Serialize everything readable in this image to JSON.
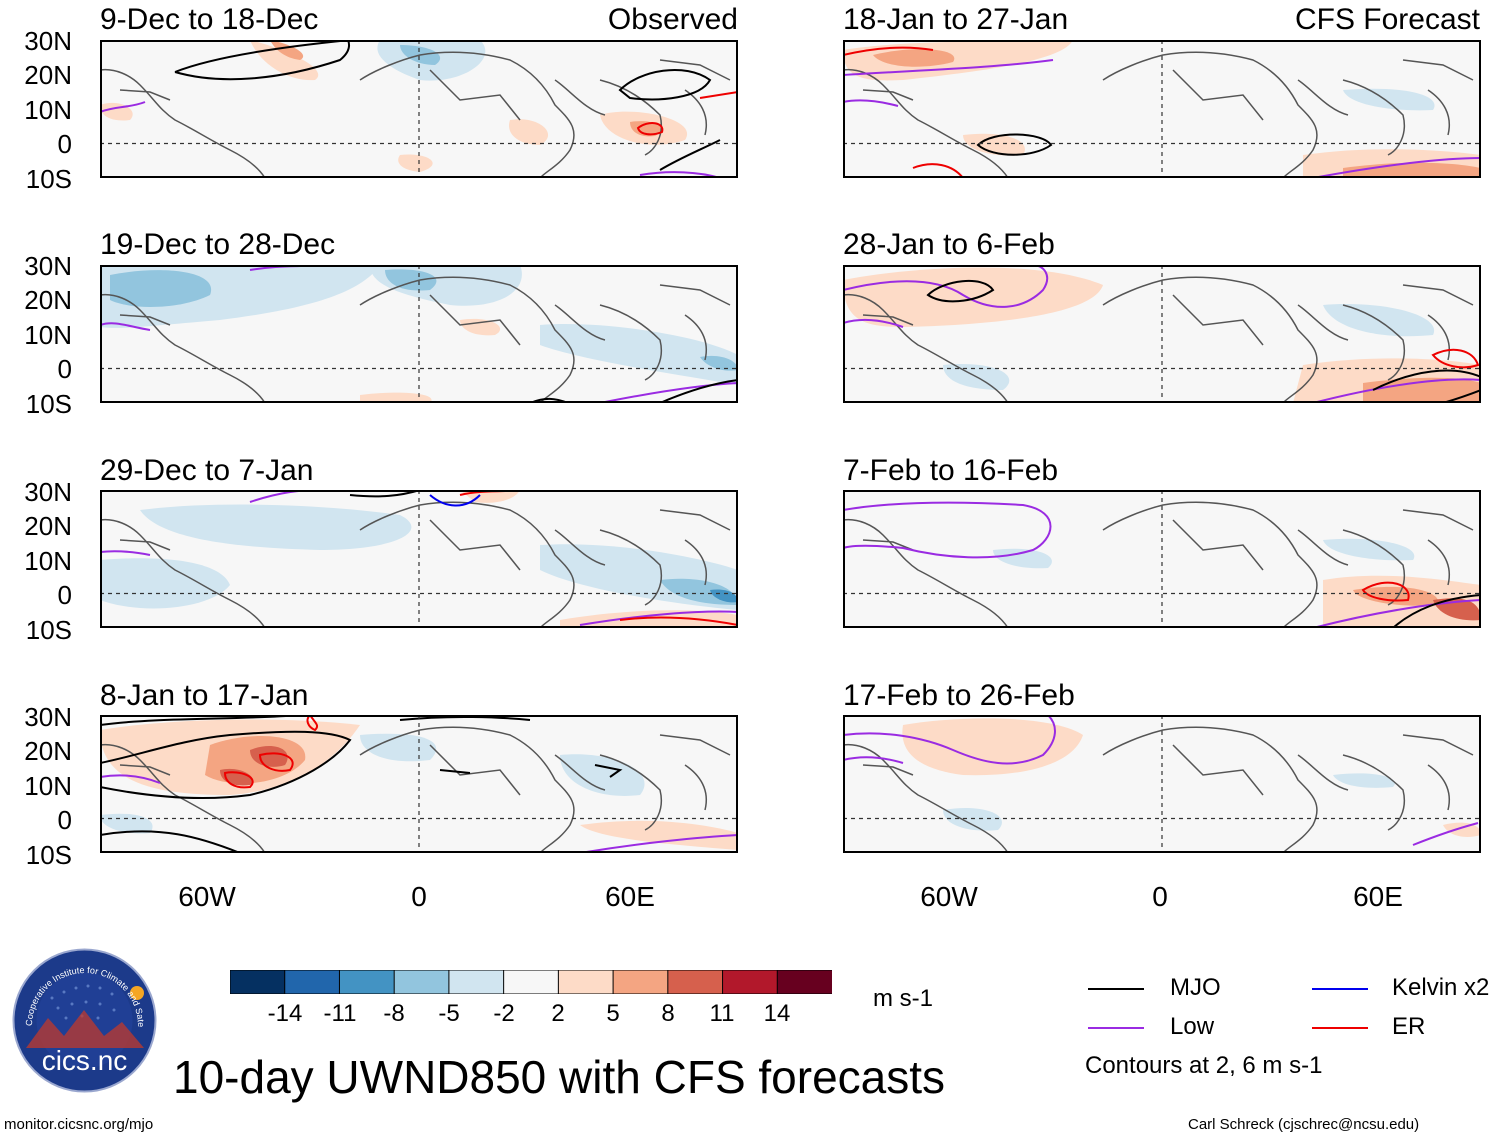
{
  "observed_label": "Observed",
  "forecast_label": "CFS Forecast",
  "panels": [
    {
      "title": "9-Dec to 18-Dec"
    },
    {
      "title": "19-Dec to 28-Dec"
    },
    {
      "title": "29-Dec to 7-Jan"
    },
    {
      "title": "8-Jan to 17-Jan"
    },
    {
      "title": "18-Jan to 27-Jan"
    },
    {
      "title": "28-Jan to 6-Feb"
    },
    {
      "title": "7-Feb to 16-Feb"
    },
    {
      "title": "17-Feb to 26-Feb"
    }
  ],
  "lat_labels": [
    "30N",
    "20N",
    "10N",
    "0",
    "10S"
  ],
  "lon_labels": [
    "60W",
    "0",
    "60E"
  ],
  "colorbar": {
    "labels": [
      "-14",
      "-11",
      "-8",
      "-5",
      "-2",
      "2",
      "5",
      "8",
      "11",
      "14"
    ],
    "units": "m s-1",
    "colors": [
      "#053061",
      "#2166ac",
      "#4393c3",
      "#92c5de",
      "#d1e5f0",
      "#f7f7f7",
      "#fddbc7",
      "#f4a582",
      "#d6604d",
      "#b2182b",
      "#67001f"
    ]
  },
  "legend": {
    "mjo": {
      "label": "MJO",
      "color": "#000000"
    },
    "kelvin": {
      "label": "Kelvin x2",
      "color": "#0000ee"
    },
    "low": {
      "label": "Low",
      "color": "#9a2be2"
    },
    "er": {
      "label": "ER",
      "color": "#ee0000"
    },
    "contours_note": "Contours at 2, 6 m s-1"
  },
  "main_title": "10-day UWND850 with CFS forecasts",
  "logo": {
    "text": "cics.nc",
    "arc_text": "Cooperative Institute for Climate and Satellites"
  },
  "footer_left": "monitor.cicsnc.org/mjo",
  "footer_right": "Carl Schreck (cjschrec@ncsu.edu)"
}
